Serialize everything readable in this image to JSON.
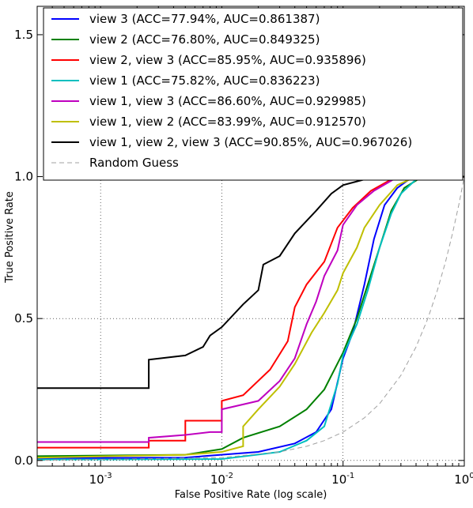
{
  "chart_data": {
    "type": "line",
    "title": "",
    "xlabel": "False Positive Rate (log scale)",
    "ylabel": "True Positive Rate",
    "x_scale": "log",
    "xlim": [
      0.0003,
      1.0
    ],
    "ylim": [
      -0.02,
      1.6
    ],
    "grid": true,
    "legend_position": "top",
    "x_ticks": [
      {
        "value": 0.001,
        "base": "10",
        "exp": "-3"
      },
      {
        "value": 0.01,
        "base": "10",
        "exp": "-2"
      },
      {
        "value": 0.1,
        "base": "10",
        "exp": "-1"
      },
      {
        "value": 1.0,
        "base": "10",
        "exp": "0"
      }
    ],
    "y_ticks": [
      {
        "value": 0.0,
        "label": "0.0"
      },
      {
        "value": 0.5,
        "label": "0.5"
      },
      {
        "value": 1.0,
        "label": "1.0"
      },
      {
        "value": 1.5,
        "label": "1.5"
      }
    ],
    "series": [
      {
        "name": "view 3 (ACC=77.94%, AUC=0.861387)",
        "color": "#0000ff",
        "points": [
          [
            0.0003,
            0.008
          ],
          [
            0.005,
            0.01
          ],
          [
            0.02,
            0.03
          ],
          [
            0.04,
            0.06
          ],
          [
            0.06,
            0.1
          ],
          [
            0.08,
            0.18
          ],
          [
            0.1,
            0.36
          ],
          [
            0.12,
            0.45
          ],
          [
            0.15,
            0.62
          ],
          [
            0.18,
            0.78
          ],
          [
            0.22,
            0.9
          ],
          [
            0.28,
            0.96
          ],
          [
            0.35,
            0.99
          ],
          [
            0.5,
            1.0
          ],
          [
            1.0,
            1.0
          ]
        ]
      },
      {
        "name": "view 2 (ACC=76.80%, AUC=0.849325)",
        "color": "#008000",
        "points": [
          [
            0.0003,
            0.015
          ],
          [
            0.005,
            0.02
          ],
          [
            0.01,
            0.04
          ],
          [
            0.015,
            0.08
          ],
          [
            0.03,
            0.12
          ],
          [
            0.05,
            0.18
          ],
          [
            0.07,
            0.25
          ],
          [
            0.1,
            0.38
          ],
          [
            0.13,
            0.5
          ],
          [
            0.16,
            0.62
          ],
          [
            0.2,
            0.75
          ],
          [
            0.25,
            0.88
          ],
          [
            0.32,
            0.96
          ],
          [
            0.45,
            1.0
          ],
          [
            1.0,
            1.0
          ]
        ]
      },
      {
        "name": "view 2, view 3 (ACC=85.95%, AUC=0.935896)",
        "color": "#ff0000",
        "points": [
          [
            0.0003,
            0.045
          ],
          [
            0.0025,
            0.045
          ],
          [
            0.0025,
            0.07
          ],
          [
            0.005,
            0.07
          ],
          [
            0.005,
            0.14
          ],
          [
            0.01,
            0.14
          ],
          [
            0.01,
            0.21
          ],
          [
            0.015,
            0.23
          ],
          [
            0.025,
            0.32
          ],
          [
            0.035,
            0.42
          ],
          [
            0.04,
            0.54
          ],
          [
            0.05,
            0.62
          ],
          [
            0.07,
            0.7
          ],
          [
            0.09,
            0.82
          ],
          [
            0.12,
            0.89
          ],
          [
            0.17,
            0.95
          ],
          [
            0.25,
            0.99
          ],
          [
            0.35,
            1.0
          ],
          [
            1.0,
            1.0
          ]
        ]
      },
      {
        "name": "view 1 (ACC=75.82%, AUC=0.836223)",
        "color": "#00bfbf",
        "points": [
          [
            0.0003,
            0.003
          ],
          [
            0.01,
            0.005
          ],
          [
            0.03,
            0.03
          ],
          [
            0.05,
            0.07
          ],
          [
            0.07,
            0.12
          ],
          [
            0.09,
            0.27
          ],
          [
            0.1,
            0.37
          ],
          [
            0.13,
            0.48
          ],
          [
            0.16,
            0.6
          ],
          [
            0.2,
            0.75
          ],
          [
            0.25,
            0.87
          ],
          [
            0.3,
            0.94
          ],
          [
            0.4,
            0.99
          ],
          [
            0.6,
            1.0
          ],
          [
            1.0,
            1.0
          ]
        ]
      },
      {
        "name": "view 1, view 3 (ACC=86.60%, AUC=0.929985)",
        "color": "#bf00bf",
        "points": [
          [
            0.0003,
            0.065
          ],
          [
            0.0025,
            0.065
          ],
          [
            0.0025,
            0.08
          ],
          [
            0.005,
            0.09
          ],
          [
            0.008,
            0.1
          ],
          [
            0.01,
            0.1
          ],
          [
            0.01,
            0.18
          ],
          [
            0.02,
            0.21
          ],
          [
            0.03,
            0.28
          ],
          [
            0.04,
            0.36
          ],
          [
            0.05,
            0.48
          ],
          [
            0.06,
            0.56
          ],
          [
            0.07,
            0.65
          ],
          [
            0.09,
            0.74
          ],
          [
            0.1,
            0.83
          ],
          [
            0.13,
            0.9
          ],
          [
            0.18,
            0.95
          ],
          [
            0.26,
            0.99
          ],
          [
            0.4,
            1.0
          ],
          [
            1.0,
            1.0
          ]
        ]
      },
      {
        "name": "view 1, view 2 (ACC=83.99%, AUC=0.912570)",
        "color": "#bfbf00",
        "points": [
          [
            0.0003,
            0.01
          ],
          [
            0.005,
            0.02
          ],
          [
            0.01,
            0.03
          ],
          [
            0.015,
            0.05
          ],
          [
            0.015,
            0.12
          ],
          [
            0.02,
            0.18
          ],
          [
            0.03,
            0.26
          ],
          [
            0.04,
            0.34
          ],
          [
            0.055,
            0.45
          ],
          [
            0.07,
            0.52
          ],
          [
            0.09,
            0.6
          ],
          [
            0.1,
            0.66
          ],
          [
            0.13,
            0.75
          ],
          [
            0.15,
            0.82
          ],
          [
            0.2,
            0.9
          ],
          [
            0.28,
            0.97
          ],
          [
            0.4,
            1.0
          ],
          [
            1.0,
            1.0
          ]
        ]
      },
      {
        "name": "view 1, view 2, view 3 (ACC=90.85%, AUC=0.967026)",
        "color": "#000000",
        "points": [
          [
            0.0003,
            0.255
          ],
          [
            0.0025,
            0.255
          ],
          [
            0.0025,
            0.355
          ],
          [
            0.005,
            0.37
          ],
          [
            0.007,
            0.4
          ],
          [
            0.008,
            0.44
          ],
          [
            0.01,
            0.47
          ],
          [
            0.015,
            0.55
          ],
          [
            0.02,
            0.6
          ],
          [
            0.022,
            0.69
          ],
          [
            0.03,
            0.72
          ],
          [
            0.04,
            0.8
          ],
          [
            0.06,
            0.88
          ],
          [
            0.08,
            0.94
          ],
          [
            0.1,
            0.97
          ],
          [
            0.15,
            0.99
          ],
          [
            0.2,
            1.0
          ],
          [
            1.0,
            1.0
          ]
        ]
      },
      {
        "name": "Random Guess",
        "color": "#a0a0a0",
        "dashed": true,
        "points": [
          [
            0.0003,
            0.0003
          ],
          [
            0.01,
            0.01
          ],
          [
            0.03,
            0.03
          ],
          [
            0.05,
            0.05
          ],
          [
            0.07,
            0.07
          ],
          [
            0.1,
            0.1
          ],
          [
            0.15,
            0.15
          ],
          [
            0.2,
            0.2
          ],
          [
            0.3,
            0.3
          ],
          [
            0.4,
            0.4
          ],
          [
            0.5,
            0.5
          ],
          [
            0.6,
            0.6
          ],
          [
            0.7,
            0.7
          ],
          [
            0.8,
            0.8
          ],
          [
            0.9,
            0.9
          ],
          [
            1.0,
            1.0
          ]
        ]
      }
    ]
  }
}
